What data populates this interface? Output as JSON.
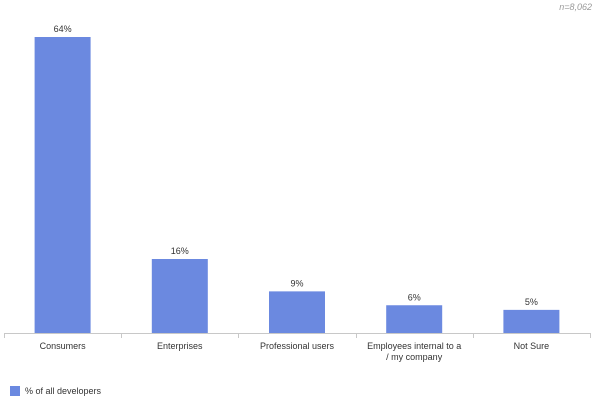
{
  "note": "n=8,062",
  "legend": {
    "label": "% of all developers"
  },
  "colors": {
    "bar": "#6b89e0",
    "axis": "#c8c8c8",
    "text": "#333333"
  },
  "chart_data": {
    "type": "bar",
    "categories": [
      "Consumers",
      "Enterprises",
      "Professional users",
      "Employees internal to a / my company",
      "Not Sure"
    ],
    "category_lines": [
      [
        "Consumers"
      ],
      [
        "Enterprises"
      ],
      [
        "Professional users"
      ],
      [
        "Employees internal to a",
        "/ my company"
      ],
      [
        "Not Sure"
      ]
    ],
    "series": [
      {
        "name": "% of all developers",
        "values": [
          64,
          16,
          9,
          6,
          5
        ]
      }
    ],
    "data_labels": [
      "64%",
      "16%",
      "9%",
      "6%",
      "5%"
    ],
    "ylim": [
      0,
      64
    ],
    "grid": false,
    "legend_position": "bottom-left"
  }
}
